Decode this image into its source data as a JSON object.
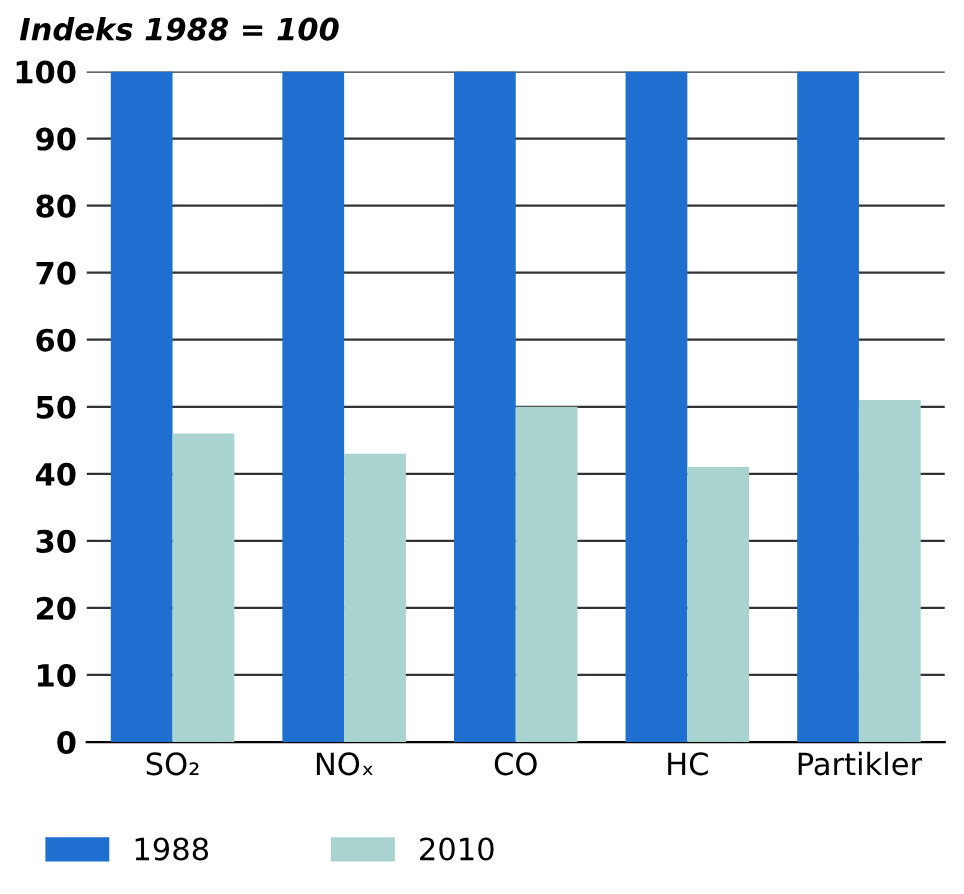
{
  "chart_data": {
    "type": "bar",
    "ylabel": "Indeks 1988 = 100",
    "categories": [
      "SO₂",
      "NOₓ",
      "CO",
      "HC",
      "Partikler"
    ],
    "series": [
      {
        "name": "1988",
        "color": "#1f6fd0",
        "values": [
          100,
          100,
          100,
          100,
          100
        ]
      },
      {
        "name": "2010",
        "color": "#a9d3cf",
        "values": [
          46,
          43,
          50,
          41,
          51
        ]
      }
    ],
    "ylim": [
      0,
      100
    ],
    "yticks": [
      0,
      10,
      20,
      30,
      40,
      50,
      60,
      70,
      80,
      90,
      100
    ],
    "grid": "y",
    "legend": "bottom left"
  }
}
